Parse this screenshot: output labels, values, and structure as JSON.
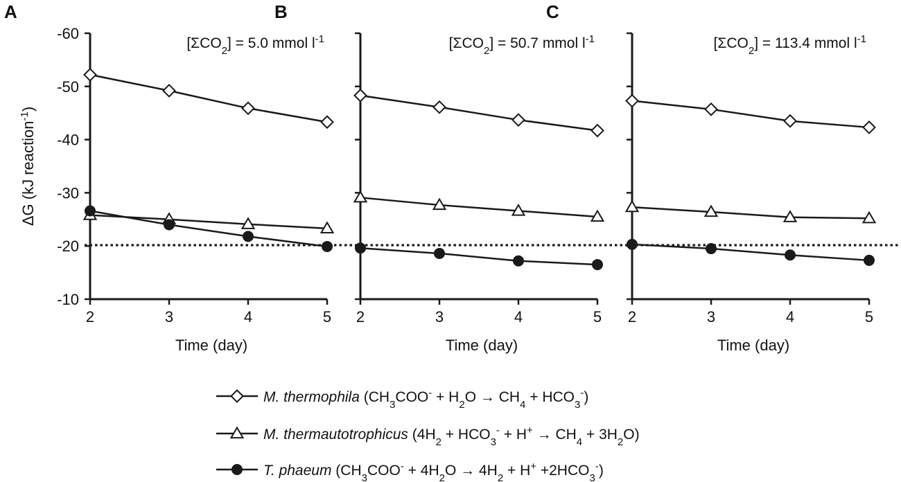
{
  "colors": {
    "ink": "#1a1a1a",
    "background": "#ffffff"
  },
  "ylabel": {
    "delta": "ΔG",
    "unit_pre": "(kJ reaction",
    "unit_sup": "-1",
    "unit_post": ")"
  },
  "panels": [
    {
      "letter": "A",
      "conc_pre": "[ΣCO",
      "conc_sub": "2",
      "conc_post": "] = 5.0 mmol l",
      "conc_sup": "-1",
      "xlabel": "Time (day)"
    },
    {
      "letter": "B",
      "conc_pre": "[ΣCO",
      "conc_sub": "2",
      "conc_post": "] = 50.7 mmol l",
      "conc_sup": "-1",
      "xlabel": "Time (day)"
    },
    {
      "letter": "C",
      "conc_pre": "[ΣCO",
      "conc_sub": "2",
      "conc_post": "] = 113.4 mmol l",
      "conc_sup": "-1",
      "xlabel": "Time (day)"
    }
  ],
  "legend": [
    {
      "marker": "diamond-open",
      "parts": [
        {
          "t": "M. thermophila",
          "i": true
        },
        {
          "t": " (CH"
        },
        {
          "t": "3",
          "sub": true
        },
        {
          "t": "COO"
        },
        {
          "t": "-",
          "sup": true
        },
        {
          "t": " + H"
        },
        {
          "t": "2",
          "sub": true
        },
        {
          "t": "O → CH"
        },
        {
          "t": "4",
          "sub": true
        },
        {
          "t": " + HCO"
        },
        {
          "t": "3",
          "sub": true
        },
        {
          "t": "-",
          "sup": true
        },
        {
          "t": ")"
        }
      ]
    },
    {
      "marker": "triangle-open",
      "parts": [
        {
          "t": "M. thermautotrophicus",
          "i": true
        },
        {
          "t": " (4H"
        },
        {
          "t": "2",
          "sub": true
        },
        {
          "t": " + HCO"
        },
        {
          "t": "3",
          "sub": true
        },
        {
          "t": "-",
          "sup": true
        },
        {
          "t": " + H"
        },
        {
          "t": "+",
          "sup": true
        },
        {
          "t": " → CH"
        },
        {
          "t": "4",
          "sub": true
        },
        {
          "t": " + 3H"
        },
        {
          "t": "2",
          "sub": true
        },
        {
          "t": "O)"
        }
      ]
    },
    {
      "marker": "circle-filled",
      "parts": [
        {
          "t": "T. phaeum",
          "i": true
        },
        {
          "t": " (CH"
        },
        {
          "t": "3",
          "sub": true
        },
        {
          "t": "COO"
        },
        {
          "t": "-",
          "sup": true
        },
        {
          "t": " + 4H"
        },
        {
          "t": "2",
          "sub": true
        },
        {
          "t": "O → 4H"
        },
        {
          "t": "2",
          "sub": true
        },
        {
          "t": " + H"
        },
        {
          "t": "+",
          "sup": true
        },
        {
          "t": " +2HCO"
        },
        {
          "t": "3",
          "sub": true
        },
        {
          "t": "-",
          "sup": true
        },
        {
          "t": ")"
        }
      ]
    }
  ],
  "chart_data": [
    {
      "type": "line",
      "title": "[ΣCO2] = 5.0 mmol l-1",
      "xlabel": "Time (day)",
      "ylabel": "ΔG (kJ reaction-1)",
      "x": [
        2,
        3,
        4,
        5
      ],
      "xticks": [
        "2",
        "3",
        "4",
        "5"
      ],
      "ylim": [
        -60,
        -10
      ],
      "yticks": [
        "-60",
        "-50",
        "-40",
        "-30",
        "-20",
        "-10"
      ],
      "y_axis_reversed": true,
      "reference_line": -20,
      "series": [
        {
          "marker": "diamond-open",
          "values": [
            -52.2,
            -49.2,
            -45.9,
            -43.3
          ]
        },
        {
          "marker": "triangle-open",
          "values": [
            -25.8,
            -25.0,
            -24.1,
            -23.3
          ]
        },
        {
          "marker": "circle-filled",
          "values": [
            -26.6,
            -24.0,
            -21.8,
            -19.9
          ]
        }
      ]
    },
    {
      "type": "line",
      "title": "[ΣCO2] = 50.7 mmol l-1",
      "xlabel": "Time (day)",
      "ylabel": "ΔG (kJ reaction-1)",
      "x": [
        2,
        3,
        4,
        5
      ],
      "xticks": [
        "2",
        "3",
        "4",
        "5"
      ],
      "ylim": [
        -60,
        -10
      ],
      "y_axis_reversed": true,
      "reference_line": -20,
      "series": [
        {
          "marker": "diamond-open",
          "values": [
            -48.3,
            -46.1,
            -43.7,
            -41.7
          ]
        },
        {
          "marker": "triangle-open",
          "values": [
            -29.1,
            -27.7,
            -26.6,
            -25.5
          ]
        },
        {
          "marker": "circle-filled",
          "values": [
            -19.6,
            -18.6,
            -17.2,
            -16.5
          ]
        }
      ]
    },
    {
      "type": "line",
      "title": "[ΣCO2] = 113.4 mmol l-1",
      "xlabel": "Time (day)",
      "ylabel": "ΔG (kJ reaction-1)",
      "x": [
        2,
        3,
        4,
        5
      ],
      "xticks": [
        "2",
        "3",
        "4",
        "5"
      ],
      "ylim": [
        -60,
        -10
      ],
      "y_axis_reversed": true,
      "reference_line": -20,
      "series": [
        {
          "marker": "diamond-open",
          "values": [
            -47.3,
            -45.7,
            -43.5,
            -42.3
          ]
        },
        {
          "marker": "triangle-open",
          "values": [
            -27.3,
            -26.4,
            -25.4,
            -25.2
          ]
        },
        {
          "marker": "circle-filled",
          "values": [
            -20.3,
            -19.5,
            -18.3,
            -17.3
          ]
        }
      ]
    }
  ]
}
